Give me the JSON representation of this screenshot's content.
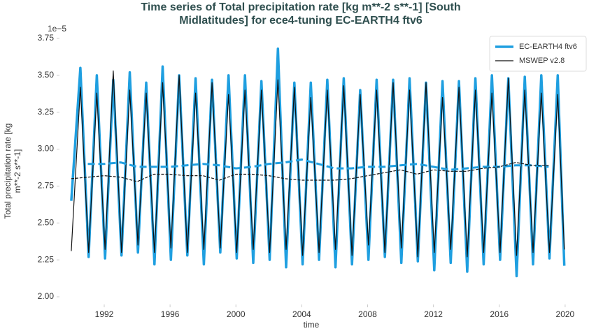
{
  "chart_data": {
    "type": "line",
    "title": [
      "Time series of Total precipitation rate [kg m**-2 s**-1] [South",
      "Midlatitudes] for ece4-tuning EC-EARTH4 ftv6"
    ],
    "ylabel": [
      "Total precipitation rate [kg",
      "m**-2 s**-1]"
    ],
    "xlabel": "time",
    "y_offset_label": "1e−5",
    "xlim": [
      1989.28,
      2020.6
    ],
    "xticks": [
      1992,
      1996,
      2000,
      2004,
      2008,
      2012,
      2016,
      2020
    ],
    "ylim": [
      1.929,
      3.821
    ],
    "yticks": [
      {
        "value": 2.0,
        "label": "2.00"
      },
      2.25,
      {
        "value": 2.5,
        "label": "2.50"
      },
      2.75,
      {
        "value": 3.0,
        "label": "3.00"
      },
      3.25,
      {
        "value": 3.5,
        "label": "3.50"
      },
      3.75
    ],
    "grid": false,
    "legend": "upper right",
    "series": [
      {
        "name": "EC-EARTH4 ftv6",
        "color": "#1f9fe0",
        "width": 3.5,
        "x": [
          1990.0,
          1990.55,
          1991.05,
          1991.55,
          1992.05,
          1992.55,
          1993.05,
          1993.55,
          1994.05,
          1994.55,
          1995.05,
          1995.55,
          1996.05,
          1996.55,
          1997.05,
          1997.55,
          1998.05,
          1998.55,
          1999.05,
          1999.55,
          2000.05,
          2000.55,
          2001.05,
          2001.55,
          2002.05,
          2002.55,
          2003.05,
          2003.55,
          2004.05,
          2004.55,
          2005.05,
          2005.55,
          2006.05,
          2006.55,
          2007.05,
          2007.55,
          2008.05,
          2008.55,
          2009.05,
          2009.55,
          2010.05,
          2010.55,
          2011.05,
          2011.55,
          2012.05,
          2012.55,
          2013.05,
          2013.55,
          2014.05,
          2014.55,
          2015.05,
          2015.55,
          2016.05,
          2016.55,
          2017.05,
          2017.55,
          2018.05,
          2018.55,
          2019.05,
          2019.55,
          2019.95
        ],
        "values": [
          2.65,
          3.55,
          2.27,
          3.5,
          2.26,
          3.47,
          2.28,
          3.52,
          2.3,
          3.45,
          2.22,
          3.56,
          2.25,
          3.5,
          2.28,
          3.48,
          2.22,
          3.47,
          2.3,
          3.5,
          2.26,
          3.5,
          2.23,
          3.46,
          2.25,
          3.68,
          2.2,
          3.45,
          2.22,
          3.45,
          2.25,
          3.47,
          2.2,
          3.48,
          2.22,
          3.4,
          2.25,
          3.47,
          2.27,
          3.47,
          2.23,
          3.48,
          2.24,
          3.45,
          2.18,
          3.46,
          2.23,
          3.46,
          2.17,
          3.48,
          2.22,
          3.5,
          2.25,
          3.48,
          2.14,
          3.49,
          2.22,
          3.5,
          2.26,
          3.5,
          2.21
        ]
      },
      {
        "name": "MSWEP v2.8",
        "color": "#111111",
        "width": 1.2,
        "x": [
          1990.0,
          1990.55,
          1991.05,
          1991.55,
          1992.05,
          1992.55,
          1993.05,
          1993.55,
          1994.05,
          1994.55,
          1995.05,
          1995.55,
          1996.05,
          1996.55,
          1997.05,
          1997.55,
          1998.05,
          1998.55,
          1999.05,
          1999.55,
          2000.05,
          2000.55,
          2001.05,
          2001.55,
          2002.05,
          2002.55,
          2003.05,
          2003.55,
          2004.05,
          2004.55,
          2005.05,
          2005.55,
          2006.05,
          2006.55,
          2007.05,
          2007.55,
          2008.05,
          2008.55,
          2009.05,
          2009.55,
          2010.05,
          2010.55,
          2011.05,
          2011.55,
          2012.05,
          2012.55,
          2013.05,
          2013.55,
          2014.05,
          2014.55,
          2015.05,
          2015.55,
          2016.05,
          2016.55,
          2017.05,
          2017.55,
          2018.05,
          2018.55,
          2019.05,
          2019.55,
          2019.95
        ],
        "values": [
          2.31,
          3.42,
          2.3,
          3.38,
          2.32,
          3.53,
          2.3,
          3.4,
          2.35,
          3.38,
          2.3,
          3.45,
          2.33,
          3.5,
          2.3,
          3.38,
          2.32,
          3.45,
          2.33,
          3.37,
          2.3,
          3.4,
          2.32,
          3.4,
          2.3,
          3.47,
          2.32,
          3.42,
          2.28,
          3.35,
          2.3,
          3.4,
          2.32,
          3.43,
          2.28,
          3.37,
          2.35,
          3.4,
          2.3,
          3.45,
          2.33,
          3.4,
          2.27,
          3.45,
          2.3,
          3.35,
          2.32,
          3.42,
          2.27,
          3.4,
          2.3,
          3.38,
          2.3,
          3.48,
          2.28,
          3.4,
          2.3,
          3.38,
          2.3,
          3.37,
          2.32
        ]
      },
      {
        "color": "#1f9fe0",
        "width": 3,
        "dashed": true,
        "x": [
          1991,
          1992,
          1993,
          1994,
          1995,
          1996,
          1997,
          1998,
          1999,
          2000,
          2001,
          2002,
          2003,
          2004,
          2005,
          2006,
          2007,
          2008,
          2009,
          2010,
          2011,
          2012,
          2013,
          2014,
          2015,
          2016,
          2017,
          2018,
          2019
        ],
        "values": [
          2.9,
          2.9,
          2.91,
          2.88,
          2.88,
          2.88,
          2.89,
          2.9,
          2.89,
          2.87,
          2.88,
          2.9,
          2.91,
          2.93,
          2.9,
          2.87,
          2.87,
          2.88,
          2.88,
          2.89,
          2.9,
          2.88,
          2.86,
          2.87,
          2.88,
          2.88,
          2.89,
          2.89,
          2.88
        ]
      },
      {
        "color": "#111111",
        "width": 1.2,
        "dashed": true,
        "x": [
          1990,
          1991,
          1992,
          1993,
          1994,
          1995,
          1996,
          1997,
          1998,
          1999,
          2000,
          2001,
          2002,
          2003,
          2004,
          2005,
          2006,
          2007,
          2008,
          2009,
          2010,
          2011,
          2012,
          2013,
          2014,
          2015,
          2016,
          2017,
          2018,
          2019
        ],
        "values": [
          2.8,
          2.81,
          2.82,
          2.81,
          2.78,
          2.83,
          2.83,
          2.82,
          2.82,
          2.79,
          2.83,
          2.83,
          2.82,
          2.8,
          2.79,
          2.79,
          2.79,
          2.8,
          2.82,
          2.84,
          2.86,
          2.83,
          2.86,
          2.85,
          2.85,
          2.87,
          2.88,
          2.91,
          2.89,
          2.89
        ]
      }
    ]
  }
}
